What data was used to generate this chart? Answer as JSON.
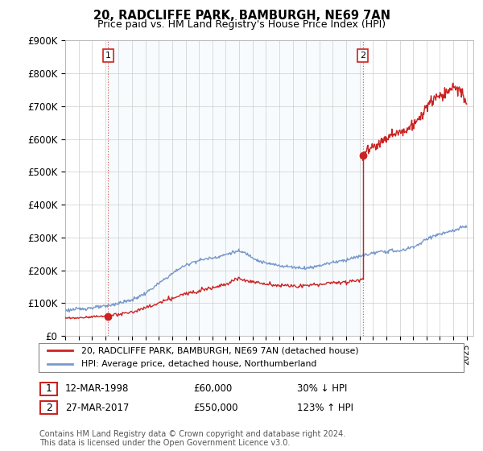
{
  "title": "20, RADCLIFFE PARK, BAMBURGH, NE69 7AN",
  "subtitle": "Price paid vs. HM Land Registry's House Price Index (HPI)",
  "ylabel_values": [
    "£0",
    "£100K",
    "£200K",
    "£300K",
    "£400K",
    "£500K",
    "£600K",
    "£700K",
    "£800K",
    "£900K"
  ],
  "ylim": [
    0,
    900000
  ],
  "yticks": [
    0,
    100000,
    200000,
    300000,
    400000,
    500000,
    600000,
    700000,
    800000,
    900000
  ],
  "xlim_start": 1995.0,
  "xlim_end": 2025.5,
  "sale1_x": 1998.21,
  "sale1_y": 60000,
  "sale1_label": "12-MAR-1998",
  "sale1_price": "£60,000",
  "sale1_hpi": "30% ↓ HPI",
  "sale2_x": 2017.23,
  "sale2_y": 550000,
  "sale2_label": "27-MAR-2017",
  "sale2_price": "£550,000",
  "sale2_hpi": "123% ↑ HPI",
  "red_color": "#cc2222",
  "blue_color": "#7799cc",
  "legend_label1": "20, RADCLIFFE PARK, BAMBURGH, NE69 7AN (detached house)",
  "legend_label2": "HPI: Average price, detached house, Northumberland",
  "footnote1": "Contains HM Land Registry data © Crown copyright and database right 2024.",
  "footnote2": "This data is licensed under the Open Government Licence v3.0.",
  "background_color": "#ffffff",
  "grid_color": "#cccccc",
  "hpi_years": [
    1995.0,
    1995.5,
    1996.0,
    1996.5,
    1997.0,
    1997.5,
    1998.0,
    1998.5,
    1999.0,
    1999.5,
    2000.0,
    2000.5,
    2001.0,
    2001.5,
    2002.0,
    2002.5,
    2003.0,
    2003.5,
    2004.0,
    2004.5,
    2005.0,
    2005.5,
    2006.0,
    2006.5,
    2007.0,
    2007.5,
    2008.0,
    2008.5,
    2009.0,
    2009.5,
    2010.0,
    2010.5,
    2011.0,
    2011.5,
    2012.0,
    2012.5,
    2013.0,
    2013.5,
    2014.0,
    2014.5,
    2015.0,
    2015.5,
    2016.0,
    2016.5,
    2017.0,
    2017.5,
    2018.0,
    2018.5,
    2019.0,
    2019.5,
    2020.0,
    2020.5,
    2021.0,
    2021.5,
    2022.0,
    2022.5,
    2023.0,
    2023.5,
    2024.0,
    2024.5,
    2025.0
  ],
  "hpi_vals": [
    78000,
    80000,
    82000,
    84000,
    86000,
    88000,
    90000,
    95000,
    100000,
    105000,
    110000,
    120000,
    130000,
    145000,
    160000,
    175000,
    190000,
    205000,
    215000,
    225000,
    230000,
    235000,
    238000,
    242000,
    248000,
    255000,
    258000,
    252000,
    240000,
    228000,
    222000,
    218000,
    215000,
    212000,
    210000,
    208000,
    207000,
    210000,
    215000,
    220000,
    225000,
    228000,
    232000,
    238000,
    242000,
    248000,
    252000,
    256000,
    258000,
    260000,
    258000,
    265000,
    272000,
    280000,
    295000,
    305000,
    310000,
    315000,
    320000,
    328000,
    335000
  ],
  "red_years_seg1": [
    1995.0,
    1995.5,
    1996.0,
    1996.5,
    1997.0,
    1997.5,
    1998.0,
    1998.21
  ],
  "red_vals_seg1": [
    55000,
    54000,
    55000,
    57000,
    59000,
    60000,
    60000,
    60000
  ],
  "red_years_seg2": [
    1998.21,
    1999.0,
    2000.0,
    2001.0,
    2002.0,
    2003.0,
    2004.0,
    2005.0,
    2006.0,
    2007.0,
    2007.5,
    2008.0,
    2009.0,
    2010.0,
    2011.0,
    2012.0,
    2013.0,
    2014.0,
    2015.0,
    2016.0,
    2016.5,
    2017.0,
    2017.23
  ],
  "red_vals_seg2": [
    60000,
    65000,
    73000,
    85000,
    100000,
    115000,
    128000,
    140000,
    148000,
    158000,
    168000,
    175000,
    165000,
    158000,
    155000,
    152000,
    153000,
    158000,
    162000,
    165000,
    168000,
    170000,
    175000
  ],
  "red_years_seg3": [
    2017.23,
    2017.5,
    2018.0,
    2018.5,
    2019.0,
    2019.5,
    2020.0,
    2020.5,
    2021.0,
    2021.5,
    2022.0,
    2022.5,
    2023.0,
    2023.5,
    2024.0,
    2024.5,
    2025.0
  ],
  "red_vals_seg3": [
    550000,
    565000,
    575000,
    590000,
    605000,
    615000,
    618000,
    630000,
    645000,
    660000,
    700000,
    720000,
    730000,
    740000,
    760000,
    750000,
    705000
  ]
}
